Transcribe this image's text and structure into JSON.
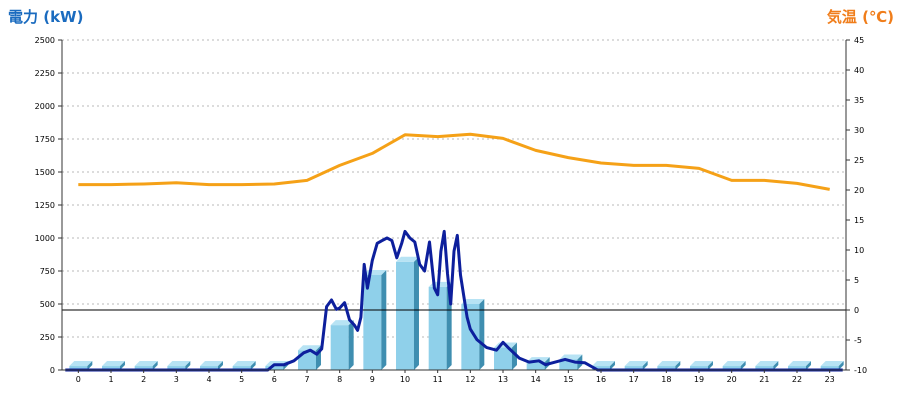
{
  "chart_data": {
    "type": "bar",
    "left_axis": {
      "title": "電力 (kW)",
      "color": "#1a6bbf",
      "ylim": [
        0,
        2500
      ],
      "ticks": [
        "0",
        "250",
        "500",
        "750",
        "1000",
        "1250",
        "1500",
        "1750",
        "2000",
        "2250",
        "2500"
      ]
    },
    "right_axis": {
      "title": "気温 (℃)",
      "color": "#f07d1a",
      "ylim": [
        -10,
        45
      ],
      "ticks": [
        "-10",
        "-5",
        "0",
        "5",
        "10",
        "15",
        "20",
        "25",
        "30",
        "35",
        "40",
        "45"
      ]
    },
    "categories": [
      "0",
      "1",
      "2",
      "3",
      "4",
      "5",
      "6",
      "7",
      "8",
      "9",
      "10",
      "11",
      "12",
      "13",
      "14",
      "15",
      "16",
      "17",
      "18",
      "19",
      "20",
      "21",
      "22",
      "23"
    ],
    "grid": true,
    "bars": {
      "axis": "left",
      "color": "#8fd0ea",
      "values": [
        30,
        30,
        30,
        30,
        30,
        30,
        30,
        150,
        340,
        720,
        820,
        630,
        500,
        170,
        60,
        80,
        30,
        30,
        30,
        30,
        30,
        30,
        30,
        30
      ]
    },
    "power_line": {
      "axis": "left",
      "color": "#0d1f9c",
      "x": [
        -0.4,
        5.8,
        6.0,
        6.3,
        6.6,
        6.9,
        7.1,
        7.3,
        7.45,
        7.6,
        7.75,
        7.9,
        8.0,
        8.15,
        8.3,
        8.45,
        8.55,
        8.65,
        8.75,
        8.85,
        9.0,
        9.15,
        9.3,
        9.45,
        9.6,
        9.75,
        9.9,
        10.0,
        10.15,
        10.3,
        10.45,
        10.6,
        10.75,
        10.9,
        11.0,
        11.1,
        11.2,
        11.3,
        11.4,
        11.5,
        11.6,
        11.7,
        11.8,
        11.9,
        12.0,
        12.2,
        12.5,
        12.8,
        13.0,
        13.2,
        13.5,
        13.8,
        14.1,
        14.3,
        14.6,
        14.9,
        15.2,
        15.5,
        15.9,
        23.4
      ],
      "values": [
        0,
        0,
        40,
        40,
        70,
        130,
        150,
        120,
        160,
        480,
        530,
        460,
        470,
        510,
        380,
        340,
        300,
        400,
        800,
        620,
        830,
        960,
        980,
        1000,
        980,
        850,
        960,
        1050,
        1000,
        970,
        800,
        750,
        970,
        620,
        570,
        900,
        1050,
        730,
        500,
        900,
        1020,
        720,
        560,
        400,
        310,
        230,
        170,
        150,
        210,
        160,
        90,
        60,
        70,
        40,
        60,
        80,
        60,
        55,
        0,
        0
      ]
    },
    "temperature_line": {
      "axis": "right",
      "color": "#f5a117",
      "values": [
        20.9,
        20.9,
        21.0,
        21.2,
        20.9,
        20.9,
        21.0,
        21.6,
        24.1,
        26.1,
        29.2,
        28.9,
        29.3,
        28.6,
        26.6,
        25.4,
        24.5,
        24.1,
        24.1,
        23.6,
        21.6,
        21.6,
        21.1,
        20.1
      ]
    },
    "zero_temperature_line": true
  }
}
